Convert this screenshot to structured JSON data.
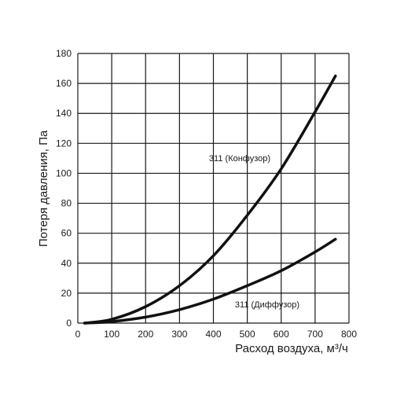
{
  "chart_data": {
    "type": "line",
    "xlabel": "Расход воздуха, м³/ч",
    "ylabel": "Потеря давления, Па",
    "xlim": [
      0,
      800
    ],
    "ylim": [
      0,
      180
    ],
    "x_ticks": [
      0,
      100,
      200,
      300,
      400,
      500,
      600,
      700,
      800
    ],
    "y_ticks": [
      0,
      20,
      40,
      60,
      80,
      100,
      120,
      140,
      160,
      180
    ],
    "grid": true,
    "series": [
      {
        "name": "311 (Конфузор)",
        "x": [
          20,
          100,
          200,
          300,
          400,
          500,
          600,
          700,
          760
        ],
        "y": [
          0,
          2.5,
          11,
          25,
          45,
          72,
          103,
          141,
          165
        ]
      },
      {
        "name": "311 (Диффузор)",
        "x": [
          20,
          100,
          200,
          300,
          400,
          500,
          600,
          700,
          760
        ],
        "y": [
          0,
          1,
          4,
          9,
          16,
          25,
          35,
          47.5,
          56
        ]
      }
    ],
    "colors": {
      "line": "#111111",
      "grid": "#1a1a1a",
      "axis": "#1a1a1a"
    }
  }
}
